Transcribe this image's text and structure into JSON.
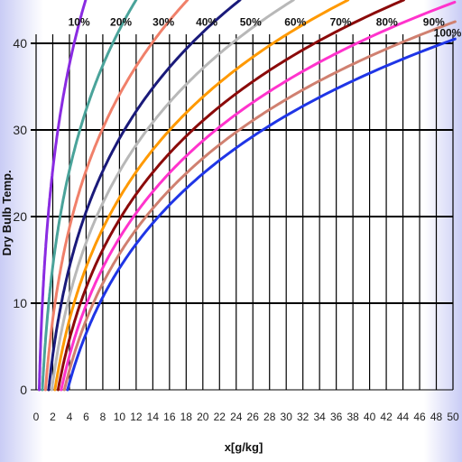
{
  "chart_data": {
    "type": "line",
    "title": "",
    "xlabel": "x[g/kg]",
    "ylabel": "Dry Bulb Temp.",
    "xlim": [
      0,
      50
    ],
    "ylim": [
      0,
      40
    ],
    "x_ticks": [
      0,
      2,
      4,
      6,
      8,
      10,
      12,
      14,
      16,
      18,
      20,
      22,
      24,
      26,
      28,
      30,
      32,
      34,
      36,
      38,
      40,
      42,
      44,
      46,
      48,
      50
    ],
    "y_ticks": [
      0,
      10,
      20,
      30,
      40
    ],
    "grid": true,
    "pressure_kpa": 101.325,
    "series": [
      {
        "name": "10%",
        "rh": 0.1,
        "color": "#8a2be2"
      },
      {
        "name": "20%",
        "rh": 0.2,
        "color": "#4aa39a"
      },
      {
        "name": "30%",
        "rh": 0.3,
        "color": "#f0806a"
      },
      {
        "name": "40%",
        "rh": 0.4,
        "color": "#1a1a7a"
      },
      {
        "name": "50%",
        "rh": 0.5,
        "color": "#b8b8b8"
      },
      {
        "name": "60%",
        "rh": 0.6,
        "color": "#ff9900"
      },
      {
        "name": "70%",
        "rh": 0.7,
        "color": "#8b0a0a"
      },
      {
        "name": "80%",
        "rh": 0.8,
        "color": "#ff33cc"
      },
      {
        "name": "90%",
        "rh": 0.9,
        "color": "#d08070"
      },
      {
        "name": "100%",
        "rh": 1.0,
        "color": "#1f35e6"
      }
    ]
  }
}
